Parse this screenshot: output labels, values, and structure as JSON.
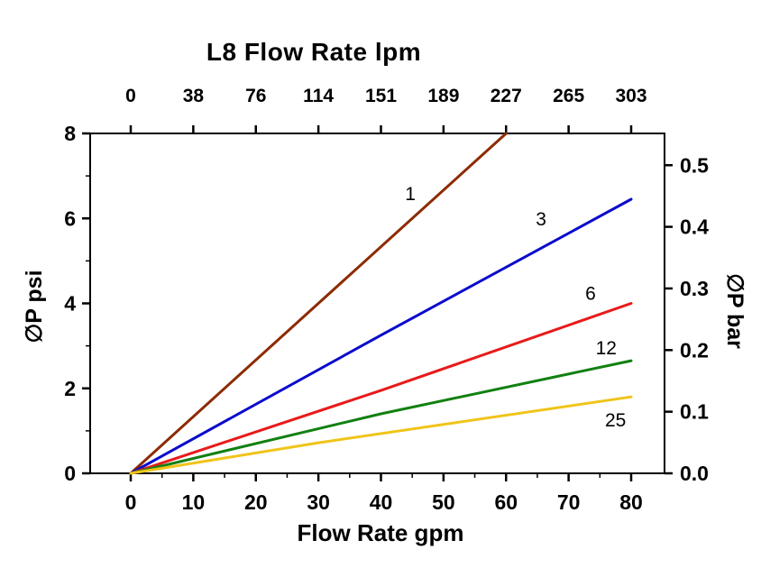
{
  "chart_data": {
    "type": "line",
    "title_top": "L8 Flow Rate lpm",
    "xlabel_bottom": "Flow Rate gpm",
    "ylabel_left": "∅P psi",
    "ylabel_right": "∅P bar",
    "x_axis_bottom": {
      "unit": "gpm",
      "range": [
        0,
        80
      ],
      "ticks": [
        0,
        10,
        20,
        30,
        40,
        50,
        60,
        70,
        80
      ]
    },
    "x_axis_top": {
      "unit": "lpm",
      "ticks": [
        0,
        38,
        76,
        114,
        151,
        189,
        227,
        265,
        303
      ]
    },
    "y_axis_left": {
      "unit": "psi",
      "range": [
        0,
        8
      ],
      "ticks": [
        0,
        2,
        4,
        6,
        8
      ]
    },
    "y_axis_right": {
      "unit": "bar",
      "tick_labels": [
        "0.0",
        "0.1",
        "0.2",
        "0.3",
        "0.4",
        "0.5"
      ]
    },
    "grid": false,
    "legend": "inline-labels",
    "series": [
      {
        "name": "1",
        "color": "#8C2B00",
        "points": [
          [
            0,
            0
          ],
          [
            30,
            4.0
          ],
          [
            60,
            8.0
          ]
        ],
        "label": {
          "x": 44.7,
          "y": 6.57
        }
      },
      {
        "name": "3",
        "color": "#0B0BCD",
        "points": [
          [
            0,
            0
          ],
          [
            40,
            3.25
          ],
          [
            80,
            6.45
          ]
        ],
        "label": {
          "x": 65.6,
          "y": 5.97
        }
      },
      {
        "name": "6",
        "color": "#E81A1A",
        "points": [
          [
            0,
            0
          ],
          [
            40,
            1.95
          ],
          [
            80,
            4.0
          ]
        ],
        "label": {
          "x": 73.5,
          "y": 4.22
        }
      },
      {
        "name": "12",
        "color": "#118011",
        "points": [
          [
            0,
            0
          ],
          [
            40,
            1.4
          ],
          [
            80,
            2.65
          ]
        ],
        "label": {
          "x": 76.0,
          "y": 2.94
        }
      },
      {
        "name": "25",
        "color": "#F0C419",
        "points": [
          [
            0,
            0
          ],
          [
            30,
            0.72
          ],
          [
            80,
            1.8
          ]
        ],
        "label": {
          "x": 77.5,
          "y": 1.24
        }
      }
    ]
  }
}
